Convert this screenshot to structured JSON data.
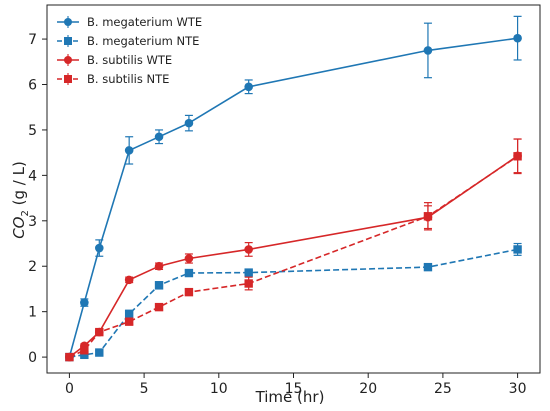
{
  "chart_data": {
    "type": "line",
    "xlabel": "Time (hr)",
    "ylabel_main": "CO",
    "ylabel_sub": "2",
    "ylabel_rest": " (g / L)",
    "xlim": [
      -1.5,
      31.5
    ],
    "ylim": [
      -0.35,
      7.75
    ],
    "xticks": [
      0,
      5,
      10,
      15,
      20,
      25,
      30
    ],
    "yticks": [
      0,
      1,
      2,
      3,
      4,
      5,
      6,
      7
    ],
    "grid": false,
    "legend_position": "top-left",
    "series": [
      {
        "name": "B. megaterium WTE",
        "color": "#1f77b4",
        "marker": "circle",
        "linestyle": "solid",
        "x": [
          0,
          1,
          2,
          4,
          6,
          8,
          12,
          24,
          30
        ],
        "y": [
          0,
          1.2,
          2.4,
          4.55,
          4.85,
          5.15,
          5.95,
          6.75,
          7.02
        ],
        "err": [
          0,
          0.08,
          0.18,
          0.3,
          0.15,
          0.17,
          0.15,
          0.6,
          0.48
        ]
      },
      {
        "name": "B. megaterium NTE",
        "color": "#1f77b4",
        "marker": "square",
        "linestyle": "dashed",
        "x": [
          0,
          1,
          2,
          4,
          6,
          8,
          12,
          24,
          30
        ],
        "y": [
          0,
          0.05,
          0.1,
          0.95,
          1.58,
          1.85,
          1.86,
          1.98,
          2.37
        ],
        "err": [
          0,
          0.03,
          0.04,
          0.08,
          0.08,
          0.06,
          0.05,
          0.06,
          0.13
        ]
      },
      {
        "name": "B. subtilis WTE",
        "color": "#d62728",
        "marker": "circle",
        "linestyle": "solid",
        "x": [
          0,
          1,
          2,
          4,
          6,
          8,
          12,
          24,
          30
        ],
        "y": [
          0,
          0.25,
          0.55,
          1.7,
          2.0,
          2.17,
          2.37,
          3.08,
          4.43
        ],
        "err": [
          0,
          0.04,
          0.05,
          0.06,
          0.07,
          0.1,
          0.15,
          0.25,
          0.37
        ]
      },
      {
        "name": "B. subtilis NTE",
        "color": "#d62728",
        "marker": "square",
        "linestyle": "dashed",
        "x": [
          0,
          1,
          2,
          4,
          6,
          8,
          12,
          24,
          30
        ],
        "y": [
          0,
          0.15,
          0.55,
          0.78,
          1.1,
          1.43,
          1.62,
          3.1,
          4.42
        ],
        "err": [
          0,
          0.03,
          0.04,
          0.06,
          0.06,
          0.06,
          0.14,
          0.3,
          0.38
        ]
      }
    ]
  }
}
